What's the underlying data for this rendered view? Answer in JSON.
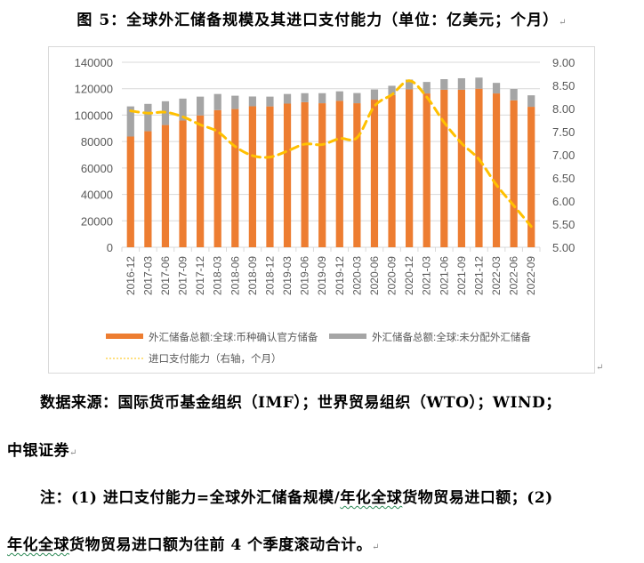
{
  "figure": {
    "title": "图 5：全球外汇储备规模及其进口支付能力（单位：亿美元；个月）"
  },
  "chart_data": {
    "type": "bar",
    "subtype": "stacked bar + line (secondary axis)",
    "title": "图 5：全球外汇储备规模及其进口支付能力（单位：亿美元；个月）",
    "categories": [
      "2016-12",
      "2017-03",
      "2017-06",
      "2017-09",
      "2017-12",
      "2018-03",
      "2018-06",
      "2018-09",
      "2018-12",
      "2019-03",
      "2019-06",
      "2019-09",
      "2019-12",
      "2020-03",
      "2020-06",
      "2020-09",
      "2020-12",
      "2021-03",
      "2021-06",
      "2021-09",
      "2021-12",
      "2022-03",
      "2022-06",
      "2022-09"
    ],
    "series": [
      {
        "name": "外汇储备总额:全球:币种确认官方储备",
        "type": "bar",
        "stack": "reserves",
        "axis": "left",
        "color": "#ED7D31",
        "values": [
          83800,
          87800,
          92500,
          95900,
          99800,
          103800,
          104600,
          106700,
          106600,
          108700,
          109800,
          109000,
          110800,
          109000,
          111700,
          115200,
          119500,
          116400,
          119200,
          119200,
          120000,
          116400,
          111200,
          106300
        ]
      },
      {
        "name": "外汇储备总额:全球:未分配外汇储备",
        "type": "bar",
        "stack": "reserves",
        "axis": "left",
        "color": "#A5A5A5",
        "values": [
          22800,
          20700,
          18000,
          16600,
          14200,
          12200,
          10100,
          7400,
          7400,
          7300,
          6800,
          7600,
          7200,
          7700,
          7700,
          7000,
          7400,
          8700,
          8000,
          8700,
          8400,
          8000,
          8600,
          8700
        ]
      },
      {
        "name": "进口支付能力（右轴，个月）",
        "type": "line",
        "axis": "right",
        "style": "dashed",
        "color": "#FFC000",
        "values": [
          7.95,
          7.9,
          7.92,
          7.82,
          7.65,
          7.5,
          7.18,
          6.98,
          6.95,
          7.08,
          7.23,
          7.22,
          7.35,
          7.37,
          8.05,
          8.3,
          8.6,
          8.25,
          7.7,
          7.25,
          6.9,
          6.35,
          5.9,
          5.45
        ]
      }
    ],
    "xlabel": "",
    "ylabel": "",
    "ylim": [
      0,
      140000
    ],
    "y_ticks": [
      "0",
      "20000",
      "40000",
      "60000",
      "80000",
      "100000",
      "120000",
      "140000"
    ],
    "y2lim": [
      5.0,
      9.0
    ],
    "y2_ticks": [
      "5.00",
      "5.50",
      "6.00",
      "6.50",
      "7.00",
      "7.50",
      "8.00",
      "8.50",
      "9.00"
    ],
    "grid": true,
    "legend_position": "bottom"
  },
  "legend": {
    "items": [
      {
        "label": "外汇储备总额:全球:币种确认官方储备",
        "color": "#ED7D31"
      },
      {
        "label": "外汇储备总额:全球:未分配外汇储备",
        "color": "#A5A5A5"
      },
      {
        "label": "进口支付能力（右轴，个月）",
        "color": "#FFC000"
      }
    ]
  },
  "source": {
    "line1": "数据来源：国际货币基金组织（IMF）；世界贸易组织（WTO）；WIND；",
    "line2": "中银证券"
  },
  "note": {
    "line1_a": "注：(1) 进口支付能力=全球外汇储备规模/",
    "line1_b": "年化全球",
    "line1_c": "货物贸易进口额；(2)",
    "line2_a": "年化全球",
    "line2_b": "货物贸易进口额为往前 4 个季度滚动合计。"
  },
  "marks": {
    "return": "↵"
  }
}
